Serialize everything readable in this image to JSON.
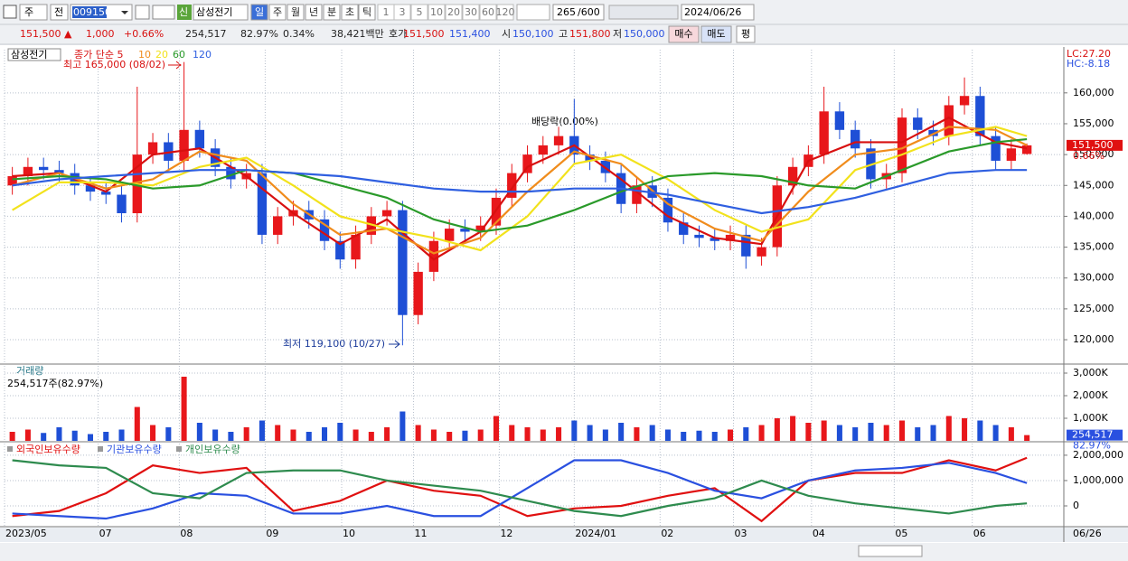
{
  "toolbar": {
    "market": "주",
    "mode": "전",
    "code": "009150",
    "badge": "신",
    "name": "삼성전기",
    "periods": [
      "일",
      "주",
      "월",
      "년",
      "분",
      "초",
      "틱"
    ],
    "intervals": [
      "1",
      "3",
      "5",
      "10",
      "20",
      "30",
      "60",
      "120"
    ],
    "count": "265",
    "count_max": "/600",
    "date": "2024/06/26"
  },
  "quote": {
    "price": "151,500 ▲",
    "change": "1,000",
    "change_rate": "+0.66%",
    "volume": "254,517",
    "volume_ratio": "82.97%",
    "turnover": "0.34%",
    "amount": "38,421백만",
    "ask_label": "호가",
    "ask": "151,500",
    "bid": "151,400",
    "open_label": "시",
    "open": "150,100",
    "high_label": "고",
    "high": "151,800",
    "low_label": "저",
    "low": "150,000",
    "buy": "매수",
    "sell": "매도",
    "avg": "평"
  },
  "chart_data": [
    {
      "type": "candlestick",
      "title": "삼성전기",
      "xlim": [
        -0.5,
        67.25
      ],
      "xticks": [
        {
          "value": -0.5,
          "label": "2023/05"
        },
        {
          "value": 5.5,
          "label": "07"
        },
        {
          "value": 10.7,
          "label": "08"
        },
        {
          "value": 16.2,
          "label": "09"
        },
        {
          "value": 21.1,
          "label": "10"
        },
        {
          "value": 25.7,
          "label": "11"
        },
        {
          "value": 31.2,
          "label": "12"
        },
        {
          "value": 36.0,
          "label": "2024/01"
        },
        {
          "value": 41.5,
          "label": "02"
        },
        {
          "value": 46.2,
          "label": "03"
        },
        {
          "value": 51.2,
          "label": "04"
        },
        {
          "value": 56.5,
          "label": "05"
        },
        {
          "value": 61.5,
          "label": "06"
        }
      ],
      "ylim": [
        116200,
        167000
      ],
      "yticks": [
        {
          "value": 120000,
          "label": "120,000"
        },
        {
          "value": 125000,
          "label": "125,000"
        },
        {
          "value": 130000,
          "label": "130,000"
        },
        {
          "value": 135000,
          "label": "135,000"
        },
        {
          "value": 140000,
          "label": "140,000"
        },
        {
          "value": 145000,
          "label": "145,000"
        },
        {
          "value": 150000,
          "label": "150,000"
        },
        {
          "value": 155000,
          "label": "155,000"
        },
        {
          "value": 160000,
          "label": "160,000"
        }
      ],
      "grid": true,
      "up_color": "#e8171b",
      "down_color": "#1e4fd6",
      "open": [
        145000,
        146500,
        148000,
        147500,
        147000,
        145000,
        144000,
        143500,
        140500,
        150000,
        152000,
        149000,
        154000,
        151000,
        148000,
        146000,
        147000,
        137000,
        140000,
        141000,
        139500,
        136000,
        133000,
        137000,
        140000,
        141000,
        124000,
        131000,
        136000,
        138000,
        137500,
        138500,
        143000,
        147000,
        150000,
        151500,
        153000,
        150000,
        149000,
        147000,
        142000,
        145000,
        143000,
        139000,
        137000,
        136500,
        136000,
        137000,
        133500,
        135000,
        145000,
        148000,
        150000,
        157000,
        154000,
        151000,
        146000,
        147000,
        156000,
        154000,
        153000,
        158000,
        159500,
        153000,
        149000,
        150100
      ],
      "high": [
        148000,
        149500,
        149500,
        149000,
        148500,
        146500,
        145500,
        145000,
        161000,
        153500,
        153500,
        165000,
        155500,
        152500,
        149500,
        148500,
        148500,
        141500,
        142500,
        142500,
        141000,
        137500,
        138500,
        141500,
        142500,
        142500,
        132500,
        137500,
        139500,
        139500,
        140000,
        144500,
        148500,
        151500,
        153000,
        154500,
        159000,
        151500,
        150500,
        148500,
        146500,
        146500,
        144500,
        140500,
        138500,
        138000,
        138500,
        138500,
        136500,
        146500,
        149500,
        151500,
        161000,
        158500,
        155500,
        152500,
        148500,
        157500,
        157500,
        155500,
        159500,
        162500,
        161000,
        154500,
        152500,
        151800
      ],
      "low": [
        143500,
        145000,
        146000,
        145500,
        143500,
        142500,
        142000,
        139000,
        139000,
        148500,
        147500,
        147500,
        149500,
        146500,
        144500,
        144500,
        135500,
        135500,
        138500,
        138000,
        134500,
        131500,
        131500,
        135500,
        138500,
        119100,
        122500,
        129500,
        134500,
        136000,
        136000,
        137000,
        141500,
        145500,
        148500,
        150000,
        148500,
        147500,
        145500,
        140500,
        140500,
        141500,
        137500,
        135500,
        135000,
        134500,
        134500,
        131500,
        132000,
        133500,
        143500,
        146500,
        148500,
        152500,
        149500,
        144500,
        144500,
        145500,
        152500,
        151500,
        151500,
        156500,
        151500,
        147500,
        147500,
        150000
      ],
      "close": [
        146500,
        148000,
        147500,
        147000,
        145000,
        144000,
        143500,
        140500,
        150000,
        152000,
        149000,
        154000,
        151000,
        148000,
        146000,
        147000,
        137000,
        140000,
        141000,
        139500,
        136000,
        133000,
        137000,
        140000,
        141000,
        124000,
        131000,
        136000,
        138000,
        137500,
        138500,
        143000,
        147000,
        150000,
        151500,
        153000,
        150000,
        149000,
        147000,
        142000,
        145000,
        143000,
        139000,
        137000,
        136500,
        136000,
        137000,
        133500,
        135000,
        145000,
        148000,
        150000,
        157000,
        154000,
        151000,
        146000,
        147000,
        156000,
        154000,
        153000,
        158000,
        159500,
        153000,
        149000,
        151000,
        151500
      ],
      "ma_x": [
        0,
        3,
        6,
        9,
        12,
        15,
        18,
        21,
        24,
        27,
        30,
        33,
        36,
        39,
        42,
        45,
        48,
        51,
        54,
        57,
        60,
        63,
        65
      ],
      "series": [
        {
          "name": "종가 단순 5",
          "color": "#d81010",
          "values": [
            146500,
            147000,
            144000,
            150000,
            151000,
            146500,
            140500,
            135500,
            139500,
            133000,
            137500,
            148000,
            151500,
            146000,
            140000,
            136500,
            135500,
            149000,
            152000,
            152000,
            156000,
            152000,
            151000
          ]
        },
        {
          "name": "10",
          "color": "#f08c1c",
          "values": [
            145000,
            147000,
            144500,
            146000,
            150500,
            149000,
            142000,
            137000,
            138000,
            134000,
            136500,
            144000,
            150500,
            148500,
            142000,
            138000,
            136000,
            144000,
            150000,
            151000,
            154500,
            154000,
            151500
          ]
        },
        {
          "name": "20",
          "color": "#f2e21c",
          "values": [
            141000,
            145500,
            145500,
            145000,
            148000,
            149500,
            145000,
            140000,
            138000,
            136500,
            134500,
            140000,
            148500,
            150000,
            146000,
            141000,
            137500,
            139500,
            147500,
            150000,
            153000,
            154500,
            153000
          ]
        },
        {
          "name": "60",
          "color": "#2a9a2a",
          "values": [
            146000,
            146500,
            146000,
            144500,
            145000,
            147500,
            147000,
            145000,
            143000,
            139500,
            137500,
            138500,
            141000,
            144000,
            146500,
            147000,
            146500,
            145000,
            144500,
            147500,
            150500,
            152000,
            152500
          ]
        },
        {
          "name": "120",
          "color": "#2f5fe0",
          "values": [
            145000,
            146000,
            146500,
            147000,
            147500,
            147500,
            147000,
            146500,
            145500,
            144500,
            144000,
            144000,
            144500,
            144500,
            143500,
            142000,
            140500,
            141500,
            143000,
            145000,
            147000,
            147500,
            147500
          ]
        }
      ],
      "annotations": [
        "최고 165,000 (08/02)",
        "최저 119,100 (10/27)",
        "배당락(0.00%)"
      ],
      "side_labels": [
        "LC:27.20",
        "HC:-8.18"
      ],
      "last_label": "151,500",
      "last_change": "0.66%"
    },
    {
      "type": "bar",
      "title": "거래량",
      "subtitle": "254,517주(82.97%)",
      "ylim": [
        0,
        3320000
      ],
      "yticks": [
        {
          "value": 1000000,
          "label": "1,000K"
        },
        {
          "value": 2000000,
          "label": "2,000K"
        },
        {
          "value": 3000000,
          "label": "3,000K"
        }
      ],
      "values": [
        400000,
        500000,
        350000,
        600000,
        450000,
        300000,
        400000,
        500000,
        1500000,
        700000,
        600000,
        2840000,
        800000,
        500000,
        400000,
        600000,
        900000,
        700000,
        500000,
        400000,
        600000,
        800000,
        500000,
        400000,
        600000,
        1300000,
        700000,
        500000,
        400000,
        450000,
        500000,
        1100000,
        700000,
        600000,
        500000,
        600000,
        900000,
        700000,
        500000,
        800000,
        600000,
        700000,
        500000,
        400000,
        450000,
        400000,
        500000,
        600000,
        700000,
        1000000,
        1100000,
        800000,
        900000,
        700000,
        600000,
        800000,
        700000,
        900000,
        600000,
        700000,
        1100000,
        1000000,
        900000,
        700000,
        600000,
        254517
      ],
      "last_label": "254,517",
      "last_ratio": "82.97%"
    },
    {
      "type": "line",
      "ylim": [
        -820000,
        2460000
      ],
      "yticks": [
        0,
        {
          "value": 1000000,
          "label": "1,000,000"
        },
        {
          "value": 2000000,
          "label": "2,000,000"
        }
      ],
      "x": [
        0,
        3,
        6,
        9,
        12,
        15,
        18,
        21,
        24,
        27,
        30,
        33,
        36,
        39,
        42,
        45,
        48,
        51,
        54,
        57,
        60,
        63,
        65
      ],
      "series": [
        {
          "name": "외국인보유수량",
          "color": "#e01010",
          "values": [
            -400000,
            -200000,
            500000,
            1600000,
            1300000,
            1500000,
            -200000,
            200000,
            1000000,
            600000,
            400000,
            -400000,
            -100000,
            0,
            400000,
            700000,
            -600000,
            1000000,
            1300000,
            1300000,
            1800000,
            1400000,
            1900000
          ]
        },
        {
          "name": "기관보유수량",
          "color": "#2a50e0",
          "values": [
            -300000,
            -400000,
            -500000,
            -100000,
            500000,
            400000,
            -300000,
            -300000,
            0,
            -400000,
            -400000,
            700000,
            1800000,
            1800000,
            1300000,
            600000,
            300000,
            1000000,
            1400000,
            1500000,
            1700000,
            1300000,
            900000
          ]
        },
        {
          "name": "개인보유수량",
          "color": "#2e8b4e",
          "values": [
            1800000,
            1600000,
            1500000,
            500000,
            300000,
            1300000,
            1400000,
            1400000,
            1000000,
            800000,
            600000,
            200000,
            -200000,
            -400000,
            0,
            300000,
            1000000,
            400000,
            100000,
            -100000,
            -300000,
            0,
            100000
          ]
        }
      ],
      "end_date": "06/26"
    }
  ]
}
